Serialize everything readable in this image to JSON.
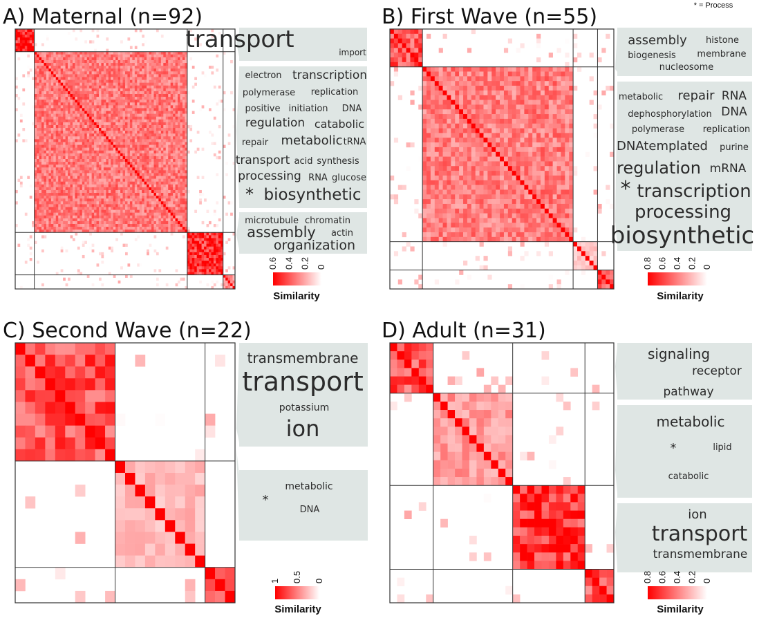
{
  "note": "* = Process",
  "chart_data": [
    {
      "type": "heatmap",
      "title": "A) Maternal (n=92)",
      "n": 92,
      "cluster_sizes": [
        8,
        64,
        15,
        5
      ],
      "within_similarity": [
        0.6,
        0.35,
        0.55,
        0.3
      ],
      "colorbar": {
        "ticks": [
          "0.6",
          "0.4",
          "0.2",
          "0"
        ],
        "max": 0.6,
        "label": "Similarity"
      },
      "clusters": [
        {
          "words": [
            "transport",
            "import"
          ]
        },
        {
          "words": [
            "electron",
            "transcription",
            "polymerase",
            "replication",
            "positive",
            "initiation",
            "DNA",
            "regulation",
            "catabolic",
            "repair",
            "metabolic",
            "tRNA",
            "transport",
            "acid",
            "synthesis",
            "processing",
            "RNA",
            "glucose",
            "*",
            "biosynthetic"
          ]
        },
        {
          "words": [
            "microtubule",
            "chromatin",
            "assembly",
            "actin",
            "organization"
          ]
        }
      ]
    },
    {
      "type": "heatmap",
      "title": "B) First Wave (n=55)",
      "n": 55,
      "cluster_sizes": [
        8,
        37,
        6,
        4
      ],
      "within_similarity": [
        0.6,
        0.45,
        0.2,
        0.6
      ],
      "colorbar": {
        "ticks": [
          "0.8",
          "0.6",
          "0.4",
          "0.2",
          "0"
        ],
        "max": 0.8,
        "label": "Similarity"
      },
      "clusters": [
        {
          "words": [
            "assembly",
            "histone",
            "biogenesis",
            "membrane",
            "nucleosome"
          ]
        },
        {
          "words": [
            "metabolic",
            "repair",
            "RNA",
            "dephosphorylation",
            "DNA",
            "polymerase",
            "replication",
            "DNAtemplated",
            "purine",
            "regulation",
            "mRNA",
            "*",
            "transcription",
            "processing",
            "biosynthetic"
          ]
        }
      ]
    },
    {
      "type": "heatmap",
      "title": "C) Second Wave (n=22)",
      "n": 22,
      "cluster_sizes": [
        10,
        9,
        3
      ],
      "within_similarity": [
        0.75,
        0.3,
        0.7
      ],
      "colorbar": {
        "ticks": [
          "1",
          "0.5",
          "0"
        ],
        "max": 1,
        "label": "Similarity"
      },
      "clusters": [
        {
          "words": [
            "transmembrane",
            "transport",
            "potassium",
            "ion"
          ]
        },
        {
          "words": [
            "metabolic",
            "*",
            "DNA"
          ]
        }
      ]
    },
    {
      "type": "heatmap",
      "title": "D) Adult (n=31)",
      "n": 31,
      "cluster_sizes": [
        6,
        11,
        10,
        4
      ],
      "within_similarity": [
        0.6,
        0.35,
        0.7,
        0.6
      ],
      "colorbar": {
        "ticks": [
          "0.8",
          "0.6",
          "0.4",
          "0.2",
          "0"
        ],
        "max": 0.8,
        "label": "Similarity"
      },
      "clusters": [
        {
          "words": [
            "signaling",
            "receptor",
            "pathway"
          ]
        },
        {
          "words": [
            "metabolic",
            "*",
            "lipid",
            "catabolic"
          ]
        },
        {
          "words": [
            "ion",
            "transport",
            "transmembrane"
          ]
        }
      ]
    }
  ]
}
